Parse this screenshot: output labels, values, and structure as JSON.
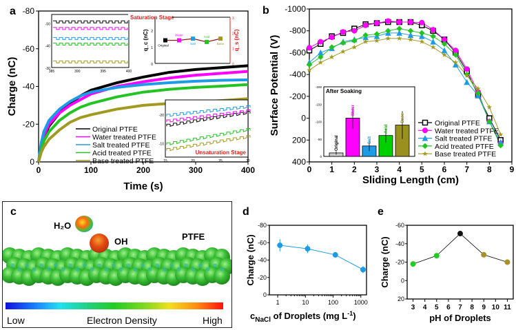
{
  "figure": {
    "panel_labels": [
      "a",
      "b",
      "c",
      "d",
      "e"
    ]
  },
  "chart_data": [
    {
      "id": "a",
      "type": "line",
      "xlabel": "Time (s)",
      "ylabel": "Charge (nC)",
      "xlim": [
        0,
        400
      ],
      "ylim": [
        0,
        -80
      ],
      "xticks": [
        "0",
        "100",
        "200",
        "300",
        "400"
      ],
      "yticks": [
        "0",
        "-20",
        "-40",
        "-60",
        "-80"
      ],
      "legend_position": "bottom-center",
      "series": [
        {
          "name": "Original PTFE",
          "color": "#000000",
          "x": [
            0,
            5,
            10,
            20,
            40,
            60,
            80,
            100,
            150,
            200,
            250,
            300,
            350,
            400
          ],
          "y": [
            0,
            -8,
            -13,
            -19,
            -26,
            -31,
            -35,
            -38,
            -42,
            -45,
            -47.5,
            -49,
            -50,
            -51
          ]
        },
        {
          "name": "Water treated PTFE",
          "color": "#ff00ff",
          "x": [
            0,
            5,
            10,
            20,
            40,
            60,
            80,
            100,
            150,
            200,
            250,
            300,
            350,
            400
          ],
          "y": [
            0,
            -9,
            -14,
            -20,
            -26,
            -30,
            -33,
            -36,
            -40,
            -42.5,
            -44.5,
            -46,
            -47,
            -48
          ]
        },
        {
          "name": "Salt treated PTFE",
          "color": "#1e9be6",
          "x": [
            0,
            5,
            10,
            20,
            40,
            60,
            80,
            100,
            150,
            200,
            250,
            300,
            350,
            400
          ],
          "y": [
            0,
            -10,
            -16,
            -22,
            -28,
            -32,
            -35,
            -37,
            -39.5,
            -41,
            -42,
            -42.8,
            -43.3,
            -43.5
          ]
        },
        {
          "name": "Acid treated PTFE",
          "color": "#22c322",
          "x": [
            0,
            5,
            10,
            20,
            40,
            60,
            80,
            100,
            150,
            200,
            250,
            300,
            350,
            400
          ],
          "y": [
            0,
            -6,
            -11,
            -16,
            -22,
            -26,
            -29,
            -31,
            -34.5,
            -37,
            -38.5,
            -39.5,
            -40.2,
            -41
          ]
        },
        {
          "name": "Base treated PTFE",
          "color": "#a09a20",
          "x": [
            0,
            5,
            10,
            20,
            40,
            60,
            80,
            100,
            150,
            200,
            250,
            300,
            350,
            400
          ],
          "y": [
            0,
            -5,
            -8,
            -12,
            -17,
            -21,
            -23.5,
            -25,
            -28,
            -30,
            -31,
            -31.8,
            -32.5,
            -33.5
          ]
        }
      ],
      "insets": [
        {
          "title": "Saturation Stage",
          "xticks": [
            "385",
            "390",
            "395",
            "400"
          ],
          "yticks": [
            "-30",
            "-40",
            "-50"
          ],
          "series_levels": [
            -51,
            -48,
            -43.5,
            -41,
            -33
          ]
        },
        {
          "type": "scatter",
          "ylabel_left": "q_c (nC)",
          "ylabel_right": "q_s (nC)",
          "yticks_left": [
            "0",
            "1",
            "2"
          ],
          "yticks_right": [
            "0",
            "1",
            "2",
            "3"
          ],
          "categories": [
            "Original",
            "Water",
            "Salt",
            "Acid",
            "Base"
          ],
          "values": [
            1.4,
            1.4,
            1.5,
            1.3,
            1.5
          ],
          "colors": [
            "#000000",
            "#ff00ff",
            "#1e9be6",
            "#22c322",
            "#a09a20"
          ]
        },
        {
          "title": "Unsaturation Stage",
          "xticks": [
            "15",
            "20",
            "25",
            "30"
          ],
          "yticks": [
            "-10",
            "-20"
          ]
        }
      ]
    },
    {
      "id": "b",
      "type": "line",
      "xlabel": "Sliding Length (cm)",
      "ylabel": "Surface Potential (V)",
      "xlim": [
        0,
        9
      ],
      "ylim": [
        400,
        -1000
      ],
      "xticks": [
        "0",
        "1",
        "2",
        "3",
        "4",
        "5",
        "6",
        "7",
        "8",
        "9"
      ],
      "yticks": [
        "-1000",
        "-800",
        "-600",
        "-400",
        "-200",
        "0",
        "200",
        "400"
      ],
      "legend_position": "bottom-right",
      "x": [
        0,
        0.5,
        1,
        1.5,
        2,
        2.5,
        3,
        3.5,
        4,
        4.5,
        5,
        5.5,
        6,
        6.5,
        7,
        7.5,
        8,
        8.5
      ],
      "series": [
        {
          "name": "Original PTFE",
          "color": "#000000",
          "marker": "square",
          "values": [
            -620,
            -680,
            -750,
            -780,
            -820,
            -860,
            -870,
            -880,
            -880,
            -880,
            -850,
            -800,
            -720,
            -600,
            -430,
            -210,
            0,
            200
          ]
        },
        {
          "name": "Water treated PTFE",
          "color": "#ff00ff",
          "marker": "circle",
          "values": [
            -645,
            -700,
            -740,
            -790,
            -800,
            -850,
            -870,
            -890,
            -880,
            -880,
            -875,
            -810,
            -720,
            -620,
            -450,
            -240,
            30,
            230
          ]
        },
        {
          "name": "Salt treated PTFE",
          "color": "#1e9be6",
          "marker": "triangle",
          "values": [
            -510,
            -600,
            -640,
            -700,
            -720,
            -740,
            -750,
            -780,
            -780,
            -760,
            -750,
            -700,
            -620,
            -490,
            -330,
            -210,
            30,
            220
          ]
        },
        {
          "name": "Acid treated PTFE",
          "color": "#22c322",
          "marker": "diamond",
          "values": [
            -490,
            -560,
            -650,
            -690,
            -710,
            -760,
            -770,
            -800,
            -820,
            -800,
            -780,
            -750,
            -680,
            -580,
            -400,
            -230,
            30,
            250
          ]
        },
        {
          "name": "Base treated PTFE",
          "color": "#a09a20",
          "marker": "star",
          "values": [
            -440,
            -510,
            -560,
            -610,
            -650,
            -700,
            -710,
            -730,
            -730,
            -720,
            -700,
            -650,
            -580,
            -510,
            -390,
            -270,
            -100,
            150
          ]
        }
      ],
      "inset": {
        "type": "bar",
        "title": "After Soaking",
        "ylim": [
          0,
          -200
        ],
        "yticks": [
          "0",
          "-50",
          "-100",
          "-150",
          "-200"
        ],
        "categories": [
          "Original",
          "Water",
          "Salt",
          "Acid",
          "Base"
        ],
        "values": [
          -10,
          -110,
          -30,
          -60,
          -90
        ],
        "errors": [
          5,
          30,
          15,
          20,
          40
        ],
        "colors": [
          "#c8c8c8",
          "#ff00ff",
          "#1e9be6",
          "#00d000",
          "#9a9020"
        ],
        "label_colors": [
          "#000000",
          "#ff00ff",
          "#1e9be6",
          "#00c000",
          "#9a9020"
        ]
      }
    },
    {
      "id": "c",
      "type": "other",
      "labels": {
        "water": "H₂O",
        "oh": "OH",
        "ptfe": "PTFE"
      },
      "colorbar": {
        "low": "Low",
        "title": "Electron Density",
        "high": "High"
      }
    },
    {
      "id": "d",
      "type": "line",
      "xlabel_main": "c",
      "xlabel_sub": "NaCl",
      "xlabel_rest": " of Droplets (mg L",
      "xlabel_sup": "-1",
      "xlabel_end": ")",
      "ylabel": "Charge (nC)",
      "xscale": "log",
      "xlim": [
        0.5,
        1600
      ],
      "ylim": [
        0,
        -80
      ],
      "xticks": [
        "1",
        "10",
        "100",
        "1000"
      ],
      "yticks": [
        "0",
        "-20",
        "-40",
        "-60",
        "-80"
      ],
      "color": "#1e9be6",
      "x": [
        1.2,
        12,
        120,
        1200
      ],
      "values": [
        -57,
        -53,
        -46,
        -29
      ],
      "errors": [
        7,
        5,
        3,
        4
      ]
    },
    {
      "id": "e",
      "type": "line",
      "xlabel": "pH of Droplets",
      "ylabel": "Charge (nC)",
      "xlim": [
        2.5,
        11.5
      ],
      "ylim": [
        20,
        -60
      ],
      "xticks": [
        "3",
        "4",
        "5",
        "6",
        "7",
        "8",
        "9",
        "10",
        "11"
      ],
      "yticks": [
        "20",
        "0",
        "-20",
        "-40",
        "-60"
      ],
      "x": [
        3,
        5,
        7,
        9,
        11
      ],
      "values": [
        -18,
        -27,
        -51,
        -28,
        -20
      ],
      "colors": [
        "#22cc22",
        "#22cc22",
        "#111111",
        "#a8902a",
        "#a8902a"
      ]
    }
  ]
}
